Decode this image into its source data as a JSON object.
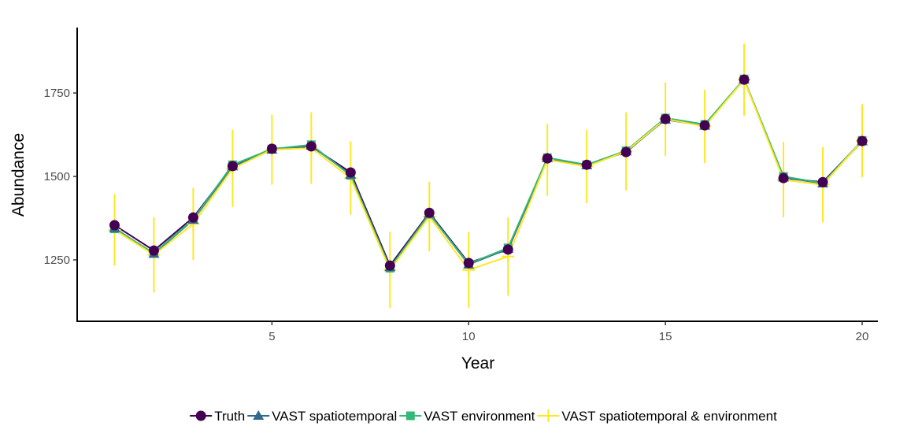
{
  "chart_data": {
    "type": "line",
    "x_label": "Year",
    "y_label": "Abundance",
    "x": [
      1,
      2,
      3,
      4,
      5,
      6,
      7,
      8,
      9,
      10,
      11,
      12,
      13,
      14,
      15,
      16,
      17,
      18,
      19,
      20
    ],
    "xlim": [
      0.05,
      20.4
    ],
    "xticks": [
      5,
      10,
      15,
      20
    ],
    "ylim": [
      1066,
      1946
    ],
    "yticks": [
      1250,
      1500,
      1750
    ],
    "grid": false,
    "legend": "bottom",
    "series": [
      {
        "name": "Truth",
        "color": "#440154",
        "marker": "circle",
        "values": [
          1354,
          1278,
          1377,
          1531,
          1583,
          1590,
          1512,
          1233,
          1391,
          1241,
          1281,
          1554,
          1535,
          1573,
          1672,
          1653,
          1790,
          1495,
          1483,
          1606
        ]
      },
      {
        "name": "VAST spatiotemporal",
        "color": "#31688e",
        "marker": "triangle",
        "values": [
          1345,
          1268,
          1370,
          1530,
          1580,
          1592,
          1505,
          1228,
          1388,
          1236,
          1283,
          1555,
          1533,
          1575,
          1670,
          1652,
          1790,
          1497,
          1479,
          1605
        ]
      },
      {
        "name": "VAST environment",
        "color": "#35b779",
        "marker": "square",
        "values": [
          1343,
          1270,
          1372,
          1535,
          1582,
          1595,
          1503,
          1225,
          1387,
          1238,
          1286,
          1556,
          1535,
          1577,
          1675,
          1656,
          1792,
          1500,
          1480,
          1608
        ]
      },
      {
        "name": "VAST spatiotemporal & environment",
        "color": "#fde725",
        "marker": "cross",
        "values": [
          1340,
          1265,
          1358,
          1524,
          1580,
          1585,
          1495,
          1220,
          1380,
          1220,
          1260,
          1550,
          1530,
          1575,
          1672,
          1650,
          1790,
          1490,
          1475,
          1607
        ],
        "errors": [
          107,
          113,
          108,
          116,
          105,
          107,
          110,
          114,
          104,
          113,
          117,
          108,
          110,
          117,
          110,
          110,
          108,
          113,
          113,
          109
        ]
      }
    ]
  }
}
